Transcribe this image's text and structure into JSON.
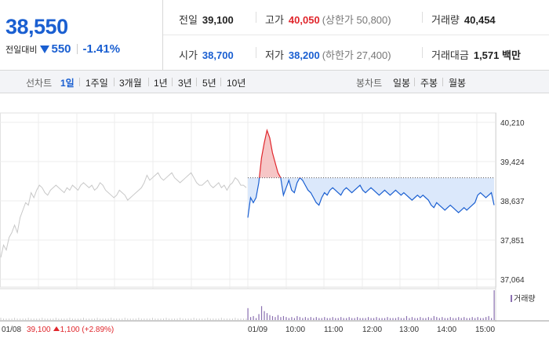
{
  "quote": {
    "price": "38,550",
    "change_label": "전일대비",
    "change": "550",
    "change_pct": "-1.41%",
    "direction": "down"
  },
  "stats": {
    "prev_close_label": "전일",
    "prev_close": "39,100",
    "high_label": "고가",
    "high": "40,050",
    "upper_limit": "(상한가 50,800)",
    "volume_label": "거래량",
    "volume": "40,454",
    "open_label": "시가",
    "open": "38,700",
    "low_label": "저가",
    "low": "38,200",
    "lower_limit": "(하한가 27,400)",
    "value_label": "거래대금",
    "value": "1,571 백만"
  },
  "tabs": {
    "line_label": "선차트",
    "line_periods": [
      "1일",
      "1주일",
      "3개월",
      "1년",
      "3년",
      "5년",
      "10년"
    ],
    "active": "1일",
    "candle_label": "봉차트",
    "candle_periods": [
      "일봉",
      "주봉",
      "월봉"
    ]
  },
  "colors": {
    "up": "#e0262c",
    "down": "#1a5fd1",
    "prev_day_line": "#c8c8c8",
    "fill_below": "#dbe8fb",
    "fill_above": "#f6c6c6",
    "volume": "#8a6fb0"
  },
  "chart_data": {
    "type": "line",
    "ylim": [
      37064,
      40210
    ],
    "y_ticks": [
      "40,210",
      "39,424",
      "38,637",
      "37,851",
      "37,064"
    ],
    "y_tick_values": [
      40210,
      39424,
      38637,
      37851,
      37064
    ],
    "reference_price": 39100,
    "x_labels": [
      "01/08",
      "01/09",
      "10:00",
      "11:00",
      "12:00",
      "13:00",
      "14:00",
      "15:00"
    ],
    "prev_day": {
      "date": "01/08",
      "close_info": "39,100",
      "change_info": "1,100",
      "change_pct_info": "(+2.89%)",
      "series": [
        37500,
        37750,
        37650,
        37900,
        38000,
        38150,
        38000,
        38300,
        38450,
        38600,
        38550,
        38800,
        38700,
        38850,
        38950,
        38900,
        38800,
        38750,
        38850,
        38900,
        38950,
        38900,
        38850,
        38800,
        38900,
        38850,
        38950,
        38900,
        38850,
        38950,
        39000,
        38950,
        38900,
        38950,
        38850,
        38900,
        39000,
        38950,
        38850,
        38800,
        38750,
        38700,
        38750,
        38850,
        38800,
        38750,
        38650,
        38700,
        38750,
        38800,
        38850,
        38900,
        39000,
        39150,
        39050,
        39100,
        39150,
        39200,
        39100,
        39050,
        39100,
        39150,
        39200,
        39100,
        39050,
        39000,
        39050,
        39100,
        39150,
        39200,
        39100,
        39000,
        38950,
        38950,
        39000,
        39050,
        38950,
        38900,
        38950,
        39000,
        38900,
        38950,
        38850,
        38950,
        39000,
        39100,
        39050,
        38950,
        38950,
        38900
      ]
    },
    "today": {
      "date": "01/09",
      "series": [
        38300,
        38700,
        38600,
        38700,
        39000,
        39500,
        39800,
        40050,
        39900,
        39600,
        39400,
        39200,
        39100,
        38750,
        38900,
        39050,
        38850,
        38800,
        39000,
        39100,
        39050,
        38950,
        38850,
        38800,
        38700,
        38600,
        38550,
        38700,
        38800,
        38750,
        38850,
        38900,
        38850,
        38800,
        38750,
        38850,
        38900,
        38850,
        38800,
        38850,
        38900,
        38950,
        38850,
        38800,
        38850,
        38900,
        38850,
        38800,
        38750,
        38800,
        38850,
        38800,
        38750,
        38800,
        38850,
        38800,
        38750,
        38800,
        38750,
        38700,
        38650,
        38700,
        38750,
        38700,
        38750,
        38700,
        38650,
        38550,
        38500,
        38600,
        38550,
        38500,
        38450,
        38500,
        38550,
        38500,
        38450,
        38400,
        38450,
        38500,
        38450,
        38500,
        38550,
        38600,
        38750,
        38800,
        38750,
        38700,
        38750,
        38800,
        38550
      ],
      "volume": [
        12,
        3,
        4,
        2,
        6,
        14,
        9,
        7,
        5,
        4,
        3,
        5,
        3,
        4,
        3,
        2,
        3,
        2,
        4,
        3,
        2,
        3,
        2,
        3,
        2,
        3,
        2,
        2,
        3,
        2,
        2,
        3,
        2,
        2,
        3,
        2,
        2,
        3,
        2,
        2,
        3,
        2,
        2,
        2,
        3,
        2,
        2,
        3,
        2,
        2,
        2,
        3,
        2,
        2,
        2,
        3,
        2,
        2,
        4,
        2,
        3,
        2,
        2,
        3,
        2,
        2,
        3,
        2,
        4,
        3,
        2,
        3,
        2,
        2,
        3,
        2,
        2,
        3,
        2,
        3,
        2,
        2,
        3,
        2,
        3,
        2,
        2,
        3,
        4,
        2,
        30
      ]
    },
    "legend": "거래량"
  }
}
